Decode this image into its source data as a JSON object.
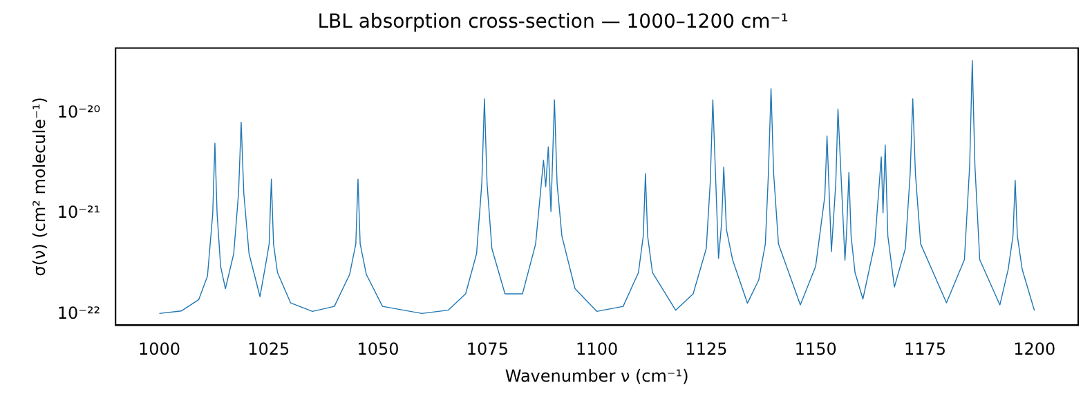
{
  "chart_data": {
    "type": "line",
    "title": "LBL absorption cross-section — 1000–1200 cm⁻¹",
    "xlabel": "Wavenumber ν (cm⁻¹)",
    "ylabel": "σ(ν) (cm² molecule⁻¹)",
    "log": "y",
    "grid": false,
    "legend": false,
    "marker": "none",
    "line_style": "solid",
    "xlim": [
      990,
      1210
    ],
    "xticks": [
      1000,
      1025,
      1050,
      1075,
      1100,
      1125,
      1150,
      1175,
      1200
    ],
    "ylim": [
      7.8e-23,
      4.4e-20
    ],
    "yticks": [
      {
        "value": 1e-22,
        "label": "10⁻²²"
      },
      {
        "value": 1e-21,
        "label": "10⁻²¹"
      },
      {
        "value": 1e-20,
        "label": "10⁻²⁰"
      }
    ],
    "series": [
      {
        "color": "#1f77b4",
        "x": [
          1000,
          1005,
          1009,
          1011,
          1012.2,
          1012.7,
          1013.2,
          1014,
          1015.1,
          1017,
          1018.1,
          1018.7,
          1019.3,
          1020.5,
          1023,
          1024.5,
          1025.1,
          1025.6,
          1026.1,
          1027,
          1030,
          1035,
          1040,
          1043.5,
          1044.9,
          1045.4,
          1045.9,
          1047.3,
          1051,
          1060,
          1066,
          1070,
          1072.5,
          1073.7,
          1074.3,
          1074.9,
          1076,
          1079,
          1083,
          1086,
          1087.8,
          1088.3,
          1088.9,
          1089.5,
          1090.3,
          1090.9,
          1092,
          1095,
          1100,
          1106,
          1109.5,
          1110.6,
          1111.1,
          1111.6,
          1112.7,
          1118,
          1122,
          1125,
          1125.9,
          1126.5,
          1127.8,
          1128.5,
          1129,
          1129.6,
          1131,
          1134.4,
          1137,
          1138.5,
          1139.2,
          1139.8,
          1140.4,
          1141.5,
          1146.5,
          1150,
          1152.1,
          1152.6,
          1153.6,
          1154.6,
          1155.1,
          1156.7,
          1157.1,
          1157.6,
          1158.1,
          1159,
          1160.8,
          1163.5,
          1165,
          1165.4,
          1165.9,
          1166.5,
          1168,
          1170.5,
          1171.6,
          1172.2,
          1172.8,
          1174,
          1179.9,
          1184,
          1185.2,
          1185.8,
          1186.4,
          1187.5,
          1192.1,
          1194,
          1195.1,
          1195.6,
          1196.1,
          1197.2,
          1200
        ],
        "values": [
          1.02e-22,
          1.08e-22,
          1.4e-22,
          2.4e-22,
          1e-21,
          5e-21,
          1e-21,
          3e-22,
          1.8e-22,
          4e-22,
          1.6e-21,
          8.1e-21,
          1.6e-21,
          4e-22,
          1.5e-22,
          3.5e-22,
          5e-22,
          2.2e-21,
          5e-22,
          2.6e-22,
          1.3e-22,
          1.07e-22,
          1.2e-22,
          2.5e-22,
          5e-22,
          2.2e-21,
          5e-22,
          2.5e-22,
          1.2e-22,
          1.02e-22,
          1.1e-22,
          1.6e-22,
          4e-22,
          2e-21,
          1.38e-20,
          2e-21,
          4.5e-22,
          1.6e-22,
          1.6e-22,
          5e-22,
          3.4e-21,
          1.85e-21,
          4.6e-21,
          1.05e-21,
          1.35e-20,
          2e-21,
          6e-22,
          1.8e-22,
          1.07e-22,
          1.2e-22,
          2.6e-22,
          6e-22,
          2.5e-21,
          6e-22,
          2.6e-22,
          1.1e-22,
          1.6e-22,
          4.5e-22,
          2e-21,
          1.35e-20,
          3.6e-22,
          8e-22,
          2.9e-21,
          7e-22,
          3.5e-22,
          1.29e-22,
          2.2e-22,
          5e-22,
          2.5e-21,
          1.74e-20,
          2.5e-21,
          5e-22,
          1.24e-22,
          3e-22,
          1.5e-21,
          5.9e-21,
          4.2e-22,
          2e-21,
          1.09e-20,
          3.45e-22,
          7e-22,
          2.56e-21,
          6e-22,
          2.6e-22,
          1.42e-22,
          5e-22,
          3.66e-21,
          1.02e-21,
          4.8e-21,
          6e-22,
          1.87e-22,
          4.5e-22,
          2.5e-21,
          1.38e-20,
          2.5e-21,
          5e-22,
          1.3e-22,
          3.5e-22,
          3e-21,
          3.3e-20,
          3e-21,
          3.5e-22,
          1.24e-22,
          2.8e-22,
          6e-22,
          2.15e-21,
          6e-22,
          2.8e-22,
          1.09e-22
        ]
      }
    ]
  }
}
